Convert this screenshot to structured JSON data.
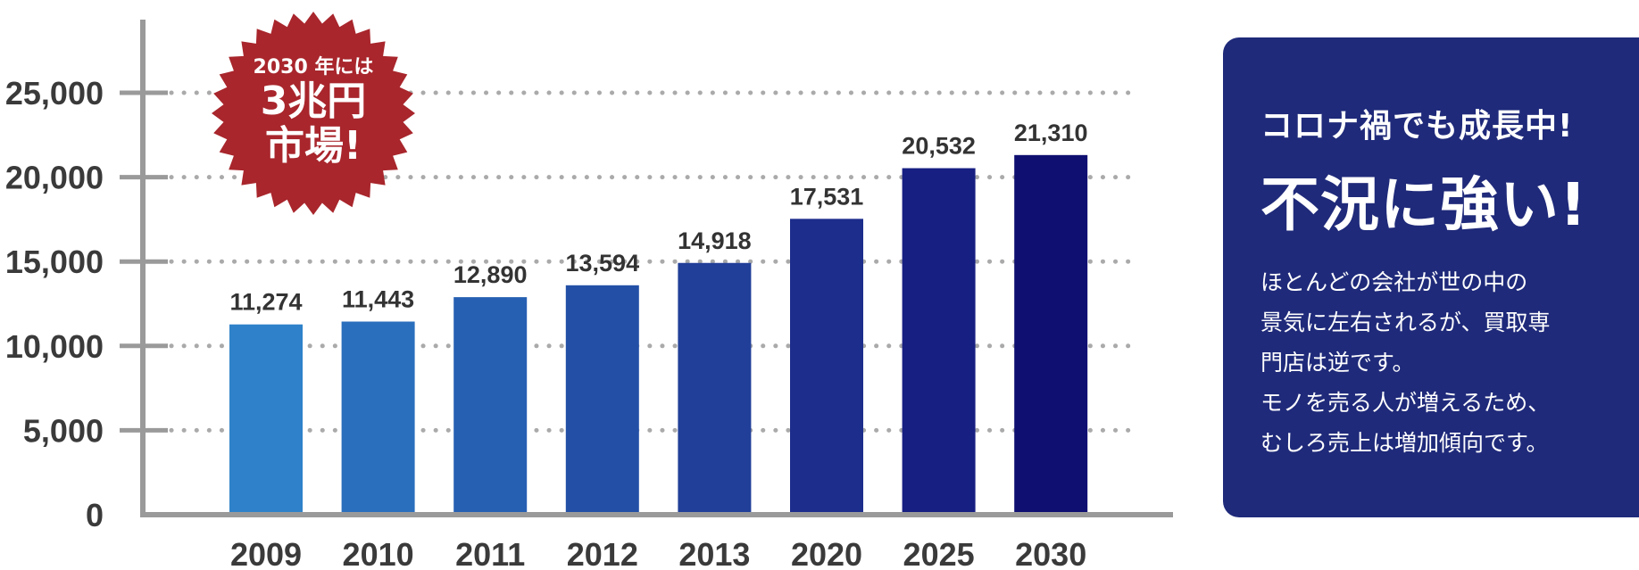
{
  "chart_data": {
    "type": "bar",
    "categories": [
      "2009",
      "2010",
      "2011",
      "2012",
      "2013",
      "2020",
      "2025",
      "2030"
    ],
    "values": [
      11274,
      11443,
      12890,
      13594,
      14918,
      17531,
      20532,
      21310
    ],
    "value_labels": [
      "11,274",
      "11,443",
      "12,890",
      "13,594",
      "14,918",
      "17,531",
      "20,532",
      "21,310"
    ],
    "y_ticks": [
      0,
      5000,
      10000,
      15000,
      20000,
      25000
    ],
    "y_tick_labels": [
      "0",
      "5,000",
      "10,000",
      "15,000",
      "20,000",
      "25,000"
    ],
    "ylim": [
      0,
      25000
    ],
    "grid": "dotted horizontal",
    "title": "",
    "xlabel": "",
    "ylabel": "",
    "colors": [
      "#2f82c9",
      "#2a6fbd",
      "#2660b3",
      "#2350a6",
      "#213f99",
      "#1d2d8c",
      "#171f82",
      "#0f0f72"
    ]
  },
  "badge": {
    "line1": "2030 年には",
    "line2": "3兆円",
    "line3": "市場!",
    "color": "#a8262c"
  },
  "panel": {
    "kicker": "コロナ禍でも成長中!",
    "headline": "不況に強い!",
    "body": [
      "ほとんどの会社が世の中の",
      "景気に左右されるが、買取専",
      "門店は逆です。",
      "モノを売る人が増えるため、",
      "むしろ売上は増加傾向です。"
    ],
    "background": "#1f2a7a"
  }
}
